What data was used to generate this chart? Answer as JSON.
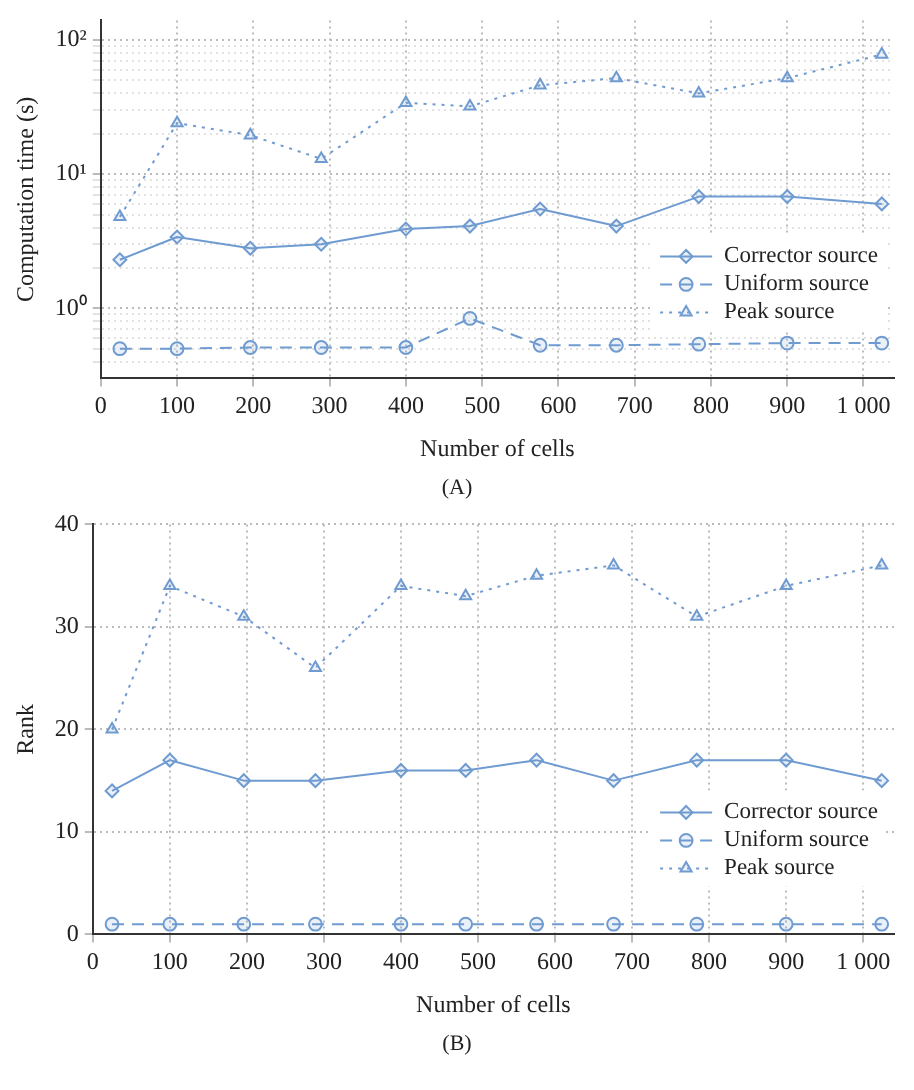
{
  "chart_data": [
    {
      "type": "line",
      "xlabel": "Number of cells",
      "ylabel": "Computation time (s)",
      "annotations": [
        "(A)"
      ],
      "log": "y",
      "grid": true,
      "legend": "bottom right",
      "x": [
        25,
        100,
        196,
        289,
        400,
        484,
        576,
        676,
        784,
        900,
        1024
      ],
      "xlim": [
        0,
        1040
      ],
      "xticks": [
        0,
        100,
        200,
        300,
        400,
        500,
        600,
        700,
        800,
        900,
        {
          "value": 1000,
          "label": "1 000"
        }
      ],
      "ylim": [
        0.31,
        140
      ],
      "yticks": [
        {
          "value": 0.4,
          "label": null
        },
        {
          "value": 0.5,
          "label": null
        },
        {
          "value": 0.6,
          "label": null
        },
        {
          "value": 0.7,
          "label": null
        },
        {
          "value": 0.8,
          "label": null
        },
        {
          "value": 0.9,
          "label": null
        },
        {
          "value": 1,
          "label": "10⁰"
        },
        {
          "value": 2,
          "label": null
        },
        {
          "value": 3,
          "label": null
        },
        {
          "value": 4,
          "label": null
        },
        {
          "value": 5,
          "label": null
        },
        {
          "value": 6,
          "label": null
        },
        {
          "value": 7,
          "label": null
        },
        {
          "value": 8,
          "label": null
        },
        {
          "value": 9,
          "label": null
        },
        {
          "value": 10,
          "label": "10¹"
        },
        {
          "value": 20,
          "label": null
        },
        {
          "value": 30,
          "label": null
        },
        {
          "value": 40,
          "label": null
        },
        {
          "value": 50,
          "label": null
        },
        {
          "value": 60,
          "label": null
        },
        {
          "value": 70,
          "label": null
        },
        {
          "value": 80,
          "label": null
        },
        {
          "value": 90,
          "label": null
        },
        {
          "value": 100,
          "label": "10²"
        }
      ],
      "series": [
        {
          "name": "Corrector source",
          "color": "#6f9bd1",
          "marker": "diamond",
          "line_style": "solid",
          "values": [
            2.3,
            3.4,
            2.8,
            3.0,
            3.9,
            4.1,
            5.5,
            4.1,
            6.8,
            6.8,
            6.0
          ]
        },
        {
          "name": "Uniform source",
          "color": "#6f9bd1",
          "marker": "circle",
          "line_style": "dashed",
          "values": [
            0.5,
            0.5,
            0.51,
            0.51,
            0.51,
            0.84,
            0.53,
            0.53,
            0.54,
            0.55,
            0.55
          ]
        },
        {
          "name": "Peak source",
          "color": "#6f9bd1",
          "marker": "triangle",
          "line_style": "dotted",
          "values": [
            4.8,
            24,
            19.5,
            13,
            34,
            32,
            46,
            52,
            40,
            52,
            78
          ]
        }
      ]
    },
    {
      "type": "line",
      "xlabel": "Number of cells",
      "ylabel": "Rank",
      "annotations": [
        "(B)"
      ],
      "grid": true,
      "legend": "bottom right",
      "x": [
        25,
        100,
        196,
        289,
        400,
        484,
        576,
        676,
        784,
        900,
        1024
      ],
      "xlim": [
        0,
        1040
      ],
      "xticks": [
        0,
        100,
        200,
        300,
        400,
        500,
        600,
        700,
        800,
        900,
        {
          "value": 1000,
          "label": "1 000"
        }
      ],
      "ylim": [
        0,
        40
      ],
      "yticks": [
        0,
        10,
        20,
        30,
        40
      ],
      "series": [
        {
          "name": "Corrector source",
          "color": "#6f9bd1",
          "marker": "diamond",
          "line_style": "solid",
          "values": [
            14,
            17,
            15,
            15,
            16,
            16,
            17,
            15,
            17,
            17,
            15
          ]
        },
        {
          "name": "Uniform source",
          "color": "#6f9bd1",
          "marker": "circle",
          "line_style": "dashed",
          "values": [
            1,
            1,
            1,
            1,
            1,
            1,
            1,
            1,
            1,
            1,
            1
          ]
        },
        {
          "name": "Peak source",
          "color": "#6f9bd1",
          "marker": "triangle",
          "line_style": "dotted",
          "values": [
            20,
            34,
            31,
            26,
            34,
            33,
            35,
            36,
            31,
            34,
            36
          ]
        }
      ]
    }
  ]
}
